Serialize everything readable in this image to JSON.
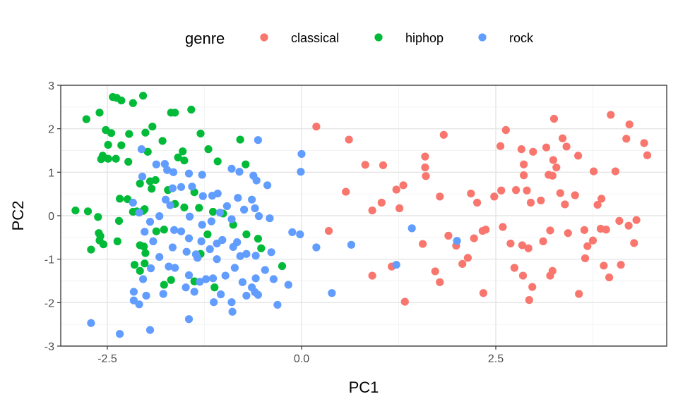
{
  "chart_data": {
    "type": "scatter",
    "xlabel": "PC1",
    "ylabel": "PC2",
    "xlim": [
      -3.1,
      4.7
    ],
    "ylim": [
      -3,
      3
    ],
    "x_ticks": [
      -2.5,
      0.0,
      2.5
    ],
    "x_tick_labels": [
      "-2.5",
      "0.0",
      "2.5"
    ],
    "y_ticks": [
      -3,
      -2,
      -1,
      0,
      1,
      2,
      3
    ],
    "y_tick_labels": [
      "-3",
      "-2",
      "-1",
      "0",
      "1",
      "2",
      "3"
    ],
    "grid": true,
    "legend": {
      "title": "genre",
      "position": "top",
      "entries": [
        {
          "label": "classical",
          "color": "#F8766D"
        },
        {
          "label": "hiphop",
          "color": "#00BA38"
        },
        {
          "label": "rock",
          "color": "#619CFF"
        }
      ]
    },
    "series": [
      {
        "name": "classical",
        "color": "#F8766D",
        "points": [
          [
            0.19,
            2.05
          ],
          [
            0.61,
            1.75
          ],
          [
            0.57,
            0.55
          ],
          [
            0.35,
            -0.35
          ],
          [
            0.82,
            1.17
          ],
          [
            0.91,
            0.12
          ],
          [
            1.03,
            0.3
          ],
          [
            1.05,
            1.16
          ],
          [
            1.22,
            0.6
          ],
          [
            1.26,
            0.17
          ],
          [
            1.31,
            0.7
          ],
          [
            0.91,
            -1.38
          ],
          [
            1.16,
            -1.17
          ],
          [
            1.33,
            -1.98
          ],
          [
            1.59,
            1.36
          ],
          [
            1.59,
            1.11
          ],
          [
            1.6,
            0.91
          ],
          [
            1.56,
            -0.65
          ],
          [
            1.78,
            0.44
          ],
          [
            1.83,
            1.86
          ],
          [
            1.72,
            -1.28
          ],
          [
            1.78,
            -1.53
          ],
          [
            1.89,
            -0.46
          ],
          [
            1.99,
            -0.69
          ],
          [
            2.07,
            -1.11
          ],
          [
            2.14,
            -0.97
          ],
          [
            2.18,
            0.51
          ],
          [
            2.26,
            0.3
          ],
          [
            2.22,
            -0.52
          ],
          [
            2.33,
            -0.35
          ],
          [
            2.37,
            -0.32
          ],
          [
            2.34,
            -1.78
          ],
          [
            2.48,
            0.44
          ],
          [
            2.57,
            0.58
          ],
          [
            2.63,
            1.97
          ],
          [
            2.56,
            1.6
          ],
          [
            2.59,
            -0.26
          ],
          [
            2.69,
            -0.64
          ],
          [
            2.74,
            -1.2
          ],
          [
            2.76,
            0.59
          ],
          [
            2.83,
            1.53
          ],
          [
            2.86,
            0.93
          ],
          [
            2.86,
            1.18
          ],
          [
            2.84,
            -0.68
          ],
          [
            2.85,
            -1.38
          ],
          [
            2.9,
            0.58
          ],
          [
            2.98,
            1.47
          ],
          [
            2.95,
            0.3
          ],
          [
            2.92,
            -0.75
          ],
          [
            2.93,
            -1.94
          ],
          [
            2.97,
            -1.64
          ],
          [
            3.08,
            0.35
          ],
          [
            3.11,
            -0.59
          ],
          [
            3.15,
            1.57
          ],
          [
            3.18,
            0.94
          ],
          [
            3.2,
            -0.34
          ],
          [
            3.23,
            0.92
          ],
          [
            3.25,
            2.23
          ],
          [
            3.24,
            1.28
          ],
          [
            3.23,
            -1.27
          ],
          [
            3.2,
            -1.38
          ],
          [
            3.28,
            1.11
          ],
          [
            3.36,
            1.78
          ],
          [
            3.39,
            0.26
          ],
          [
            3.33,
            0.52
          ],
          [
            3.41,
            1.59
          ],
          [
            3.43,
            -0.4
          ],
          [
            3.52,
            0.47
          ],
          [
            3.56,
            1.38
          ],
          [
            3.57,
            -1.8
          ],
          [
            3.64,
            -0.33
          ],
          [
            3.65,
            -0.98
          ],
          [
            3.68,
            -0.7
          ],
          [
            3.76,
            1.02
          ],
          [
            3.75,
            -0.57
          ],
          [
            3.81,
            0.25
          ],
          [
            3.86,
            0.39
          ],
          [
            3.85,
            -0.3
          ],
          [
            3.92,
            -0.32
          ],
          [
            3.89,
            -1.15
          ],
          [
            3.96,
            -1.42
          ],
          [
            3.98,
            2.32
          ],
          [
            4.04,
            1.02
          ],
          [
            4.09,
            -0.12
          ],
          [
            4.11,
            -1.13
          ],
          [
            4.18,
            1.77
          ],
          [
            4.21,
            -0.23
          ],
          [
            4.22,
            2.1
          ],
          [
            4.28,
            -0.63
          ],
          [
            4.31,
            -0.1
          ],
          [
            4.41,
            1.67
          ],
          [
            4.45,
            1.39
          ]
        ]
      },
      {
        "name": "hiphop",
        "color": "#00BA38",
        "points": [
          [
            -2.77,
            2.22
          ],
          [
            -2.6,
            2.37
          ],
          [
            -2.43,
            2.73
          ],
          [
            -2.38,
            2.71
          ],
          [
            -2.32,
            2.65
          ],
          [
            -2.17,
            2.59
          ],
          [
            -2.04,
            2.76
          ],
          [
            -2.52,
            1.97
          ],
          [
            -2.45,
            1.9
          ],
          [
            -2.49,
            1.63
          ],
          [
            -2.56,
            1.38
          ],
          [
            -2.58,
            1.3
          ],
          [
            -2.49,
            1.31
          ],
          [
            -2.39,
            1.31
          ],
          [
            -2.32,
            1.62
          ],
          [
            -2.23,
            1.24
          ],
          [
            -2.22,
            1.88
          ],
          [
            -2.01,
            1.91
          ],
          [
            -1.98,
            1.47
          ],
          [
            -1.92,
            2.05
          ],
          [
            -1.79,
            1.72
          ],
          [
            -1.68,
            2.37
          ],
          [
            -1.63,
            2.37
          ],
          [
            -1.53,
            1.48
          ],
          [
            -1.59,
            1.34
          ],
          [
            -1.51,
            1.27
          ],
          [
            -1.42,
            2.44
          ],
          [
            -1.3,
            1.89
          ],
          [
            -1.2,
            1.53
          ],
          [
            -1.08,
            1.25
          ],
          [
            -0.79,
            1.75
          ],
          [
            -0.72,
            1.18
          ],
          [
            -2.75,
            0.1
          ],
          [
            -2.62,
            -0.03
          ],
          [
            -2.35,
            -0.12
          ],
          [
            -2.34,
            0.39
          ],
          [
            -2.24,
            0.38
          ],
          [
            -2.17,
            0.09
          ],
          [
            -2.12,
            0.1
          ],
          [
            -2.08,
            0.74
          ],
          [
            -2.04,
            0.11
          ],
          [
            -2.02,
            0.15
          ],
          [
            -1.95,
            0.79
          ],
          [
            -1.93,
            0.62
          ],
          [
            -1.88,
            0.82
          ],
          [
            -1.87,
            -0.36
          ],
          [
            -1.77,
            -0.32
          ],
          [
            -1.72,
            0.59
          ],
          [
            -1.63,
            0.27
          ],
          [
            -1.51,
            0.19
          ],
          [
            -1.38,
            0.54
          ],
          [
            -1.32,
            0.18
          ],
          [
            -1.14,
            0.09
          ],
          [
            -1.21,
            -0.43
          ],
          [
            -1.3,
            -0.88
          ],
          [
            -1.01,
            0.05
          ],
          [
            -0.88,
            -0.21
          ],
          [
            -0.71,
            -0.43
          ],
          [
            -0.56,
            -0.53
          ],
          [
            -0.52,
            -0.75
          ],
          [
            -0.25,
            -1.16
          ],
          [
            -2.61,
            -0.4
          ],
          [
            -2.59,
            -0.47
          ],
          [
            -2.55,
            -0.66
          ],
          [
            -2.6,
            -0.57
          ],
          [
            -2.71,
            -0.78
          ],
          [
            -2.37,
            -0.59
          ],
          [
            -2.08,
            -0.68
          ],
          [
            -2.03,
            -0.71
          ],
          [
            -2.01,
            -0.86
          ],
          [
            -2.15,
            -1.13
          ],
          [
            -2.08,
            -1.27
          ],
          [
            -2.02,
            -1.1
          ],
          [
            -1.77,
            -1.59
          ],
          [
            -1.68,
            -1.48
          ],
          [
            -1.38,
            -1.51
          ],
          [
            -1.12,
            -1.65
          ],
          [
            -2.91,
            0.12
          ]
        ]
      },
      {
        "name": "rock",
        "color": "#619CFF",
        "points": [
          [
            -2.06,
            1.53
          ],
          [
            -2.05,
            0.9
          ],
          [
            -1.87,
            1.18
          ],
          [
            -1.76,
            1.19
          ],
          [
            -1.73,
            1.05
          ],
          [
            -1.65,
            1.0
          ],
          [
            -1.45,
            0.97
          ],
          [
            -1.28,
            0.94
          ],
          [
            -1.15,
            0.46
          ],
          [
            -0.9,
            1.08
          ],
          [
            -0.8,
            1.01
          ],
          [
            -0.62,
            0.92
          ],
          [
            -0.56,
            1.74
          ],
          [
            -0.58,
            0.81
          ],
          [
            -0.44,
            0.7
          ],
          [
            0.0,
            1.42
          ],
          [
            -0.01,
            1.01
          ],
          [
            -1.75,
            0.37
          ],
          [
            -1.69,
            0.24
          ],
          [
            -1.66,
            0.63
          ],
          [
            -1.55,
            0.66
          ],
          [
            -1.41,
            0.67
          ],
          [
            -1.27,
            0.45
          ],
          [
            -1.08,
            0.51
          ],
          [
            -0.96,
            0.22
          ],
          [
            -0.82,
            0.41
          ],
          [
            -0.64,
            0.37
          ],
          [
            -0.55,
            -0.01
          ],
          [
            -0.41,
            -0.06
          ],
          [
            -0.6,
            0.17
          ],
          [
            -0.74,
            0.14
          ],
          [
            -0.9,
            -0.08
          ],
          [
            -1.05,
            0.07
          ],
          [
            -1.16,
            -0.13
          ],
          [
            -1.28,
            -0.21
          ],
          [
            -1.44,
            -0.02
          ],
          [
            -1.55,
            -0.36
          ],
          [
            -1.64,
            -0.33
          ],
          [
            -1.83,
            -0.01
          ],
          [
            -1.91,
            -0.59
          ],
          [
            -2.02,
            -0.37
          ],
          [
            -2.09,
            0.07
          ],
          [
            -2.17,
            0.3
          ],
          [
            -1.66,
            -0.73
          ],
          [
            -1.48,
            -0.83
          ],
          [
            -1.36,
            -0.89
          ],
          [
            -1.18,
            -0.77
          ],
          [
            -1.09,
            -0.64
          ],
          [
            -1.02,
            -0.56
          ],
          [
            -0.88,
            -0.72
          ],
          [
            -0.83,
            -0.61
          ],
          [
            -0.79,
            -0.93
          ],
          [
            -0.71,
            -0.88
          ],
          [
            -0.59,
            -0.92
          ],
          [
            -0.47,
            -1.25
          ],
          [
            -0.39,
            -0.84
          ],
          [
            -0.59,
            -1.44
          ],
          [
            -0.64,
            -1.65
          ],
          [
            -0.76,
            -1.53
          ],
          [
            -0.86,
            -1.2
          ],
          [
            -0.98,
            -1.38
          ],
          [
            -1.09,
            -1.0
          ],
          [
            -1.23,
            -1.46
          ],
          [
            -1.31,
            -1.52
          ],
          [
            -1.45,
            -1.37
          ],
          [
            -1.63,
            -1.2
          ],
          [
            -1.71,
            -1.17
          ],
          [
            -1.83,
            -0.95
          ],
          [
            -1.94,
            -1.21
          ],
          [
            -2.04,
            -1.46
          ],
          [
            -2.16,
            -1.75
          ],
          [
            -2.0,
            -1.84
          ],
          [
            -1.78,
            -1.8
          ],
          [
            -1.49,
            -1.65
          ],
          [
            -1.45,
            -2.38
          ],
          [
            -1.38,
            -1.75
          ],
          [
            -1.14,
            -1.44
          ],
          [
            -1.13,
            -1.99
          ],
          [
            -1.04,
            -1.81
          ],
          [
            -0.9,
            -1.99
          ],
          [
            -0.89,
            -2.21
          ],
          [
            -0.71,
            -1.84
          ],
          [
            -0.6,
            -1.76
          ],
          [
            -0.56,
            -1.82
          ],
          [
            -0.36,
            -1.46
          ],
          [
            -0.31,
            -2.05
          ],
          [
            -0.17,
            -1.59
          ],
          [
            -0.12,
            -0.38
          ],
          [
            -0.02,
            -0.43
          ],
          [
            0.19,
            -0.73
          ],
          [
            0.39,
            -1.78
          ],
          [
            0.64,
            -0.67
          ],
          [
            1.22,
            -1.13
          ],
          [
            1.42,
            -0.29
          ],
          [
            2.0,
            -0.58
          ],
          [
            -2.09,
            -2.04
          ],
          [
            -2.16,
            -1.95
          ],
          [
            -1.95,
            -2.63
          ],
          [
            -2.34,
            -2.72
          ],
          [
            -2.71,
            -2.47
          ],
          [
            -1.34,
            -0.97
          ],
          [
            -1.29,
            -0.59
          ],
          [
            -1.45,
            -0.52
          ],
          [
            -1.95,
            -0.14
          ]
        ]
      }
    ]
  }
}
